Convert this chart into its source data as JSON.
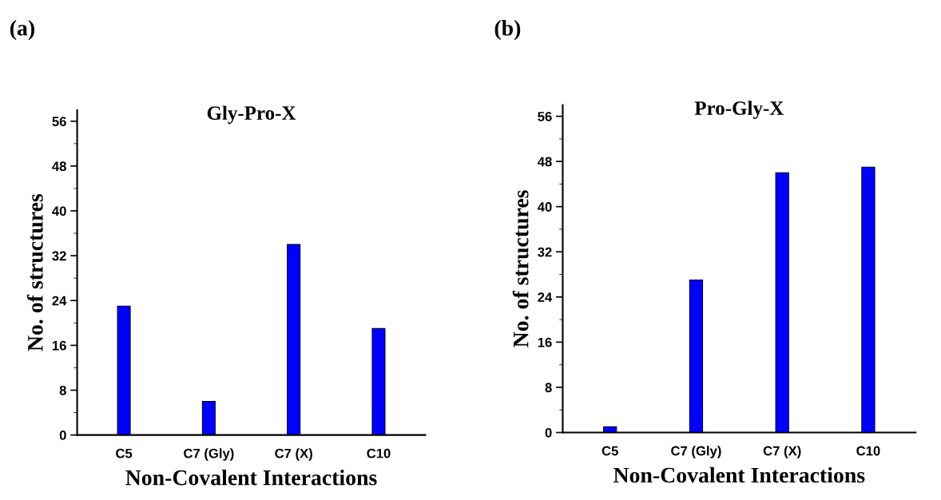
{
  "chart_data": [
    {
      "type": "bar",
      "title": "Gly-Pro-X",
      "xlabel": "Non-Covalent Interactions",
      "ylabel": "No. of structures",
      "annotations": [
        "(a)"
      ],
      "categories": [
        "C5",
        "C7 (Gly)",
        "C7 (X)",
        "C10"
      ],
      "values": [
        23,
        6,
        34,
        19
      ],
      "color": "#0000ff",
      "ylim": [
        0,
        58
      ],
      "yticks": [
        0,
        8,
        16,
        24,
        32,
        40,
        48,
        56
      ],
      "grid": false,
      "legend": false
    },
    {
      "type": "bar",
      "title": "Pro-Gly-X",
      "xlabel": "Non-Covalent Interactions",
      "ylabel": "No. of structures",
      "annotations": [
        "(b)"
      ],
      "categories": [
        "C5",
        "C7 (Gly)",
        "C7 (X)",
        "C10"
      ],
      "values": [
        1,
        27,
        46,
        47
      ],
      "color": "#0000ff",
      "ylim": [
        0,
        58
      ],
      "yticks": [
        0,
        8,
        16,
        24,
        32,
        40,
        48,
        56
      ],
      "grid": false,
      "legend": false
    }
  ]
}
